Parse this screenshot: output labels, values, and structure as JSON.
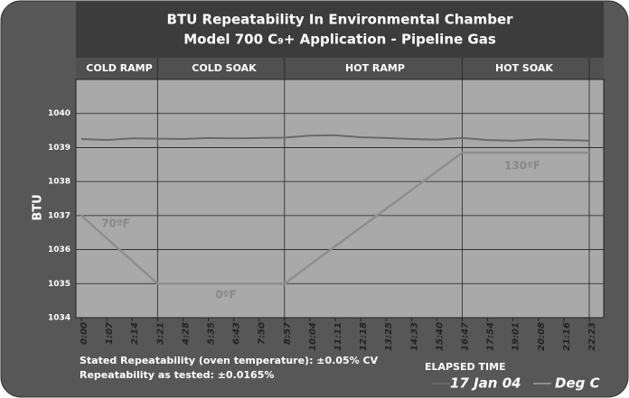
{
  "chart_data": {
    "type": "line",
    "title": [
      "BTU Repeatability In Environmental Chamber",
      "Model 700 C₉+ Application - Pipeline Gas"
    ],
    "phases": [
      "COLD RAMP",
      "COLD SOAK",
      "HOT RAMP",
      "HOT SOAK"
    ],
    "y_label": "BTU",
    "x_label": "ELAPSED TIME",
    "categories": [
      "0:00",
      "1:07",
      "2:14",
      "3:21",
      "4:28",
      "5:35",
      "6:43",
      "7:50",
      "8:57",
      "10:04",
      "11:11",
      "12:18",
      "13:25",
      "14:33",
      "15:40",
      "16:47",
      "17:54",
      "19:01",
      "20:08",
      "21:16",
      "22:23"
    ],
    "series": [
      {
        "name": "17 Jan 04",
        "color": "#6a6a6a",
        "values": [
          1039.25,
          1039.22,
          1039.27,
          1039.26,
          1039.25,
          1039.28,
          1039.27,
          1039.28,
          1039.29,
          1039.35,
          1039.36,
          1039.3,
          1039.28,
          1039.25,
          1039.23,
          1039.28,
          1039.22,
          1039.2,
          1039.24,
          1039.22,
          1039.2
        ]
      },
      {
        "name": "Deg C",
        "color": "#8e8e8e",
        "values": [
          1037,
          1036.33,
          1035.67,
          1035,
          1035,
          1035,
          1035,
          1035,
          1035,
          1035.55,
          1036.1,
          1036.65,
          1037.2,
          1037.75,
          1038.3,
          1038.85,
          1038.85,
          1038.85,
          1038.85,
          1038.85,
          1038.85
        ]
      }
    ],
    "annotations": [
      "70ºF",
      "0ºF",
      "130ºF"
    ],
    "notes": [
      "Stated Repeatability (oven temperature): ±0.05% CV",
      "Repeatability as tested: ±0.0165%"
    ],
    "ylim": [
      1034,
      1041
    ],
    "yticks": [
      1034,
      1035,
      1036,
      1037,
      1038,
      1039,
      1040
    ],
    "grid": true
  }
}
